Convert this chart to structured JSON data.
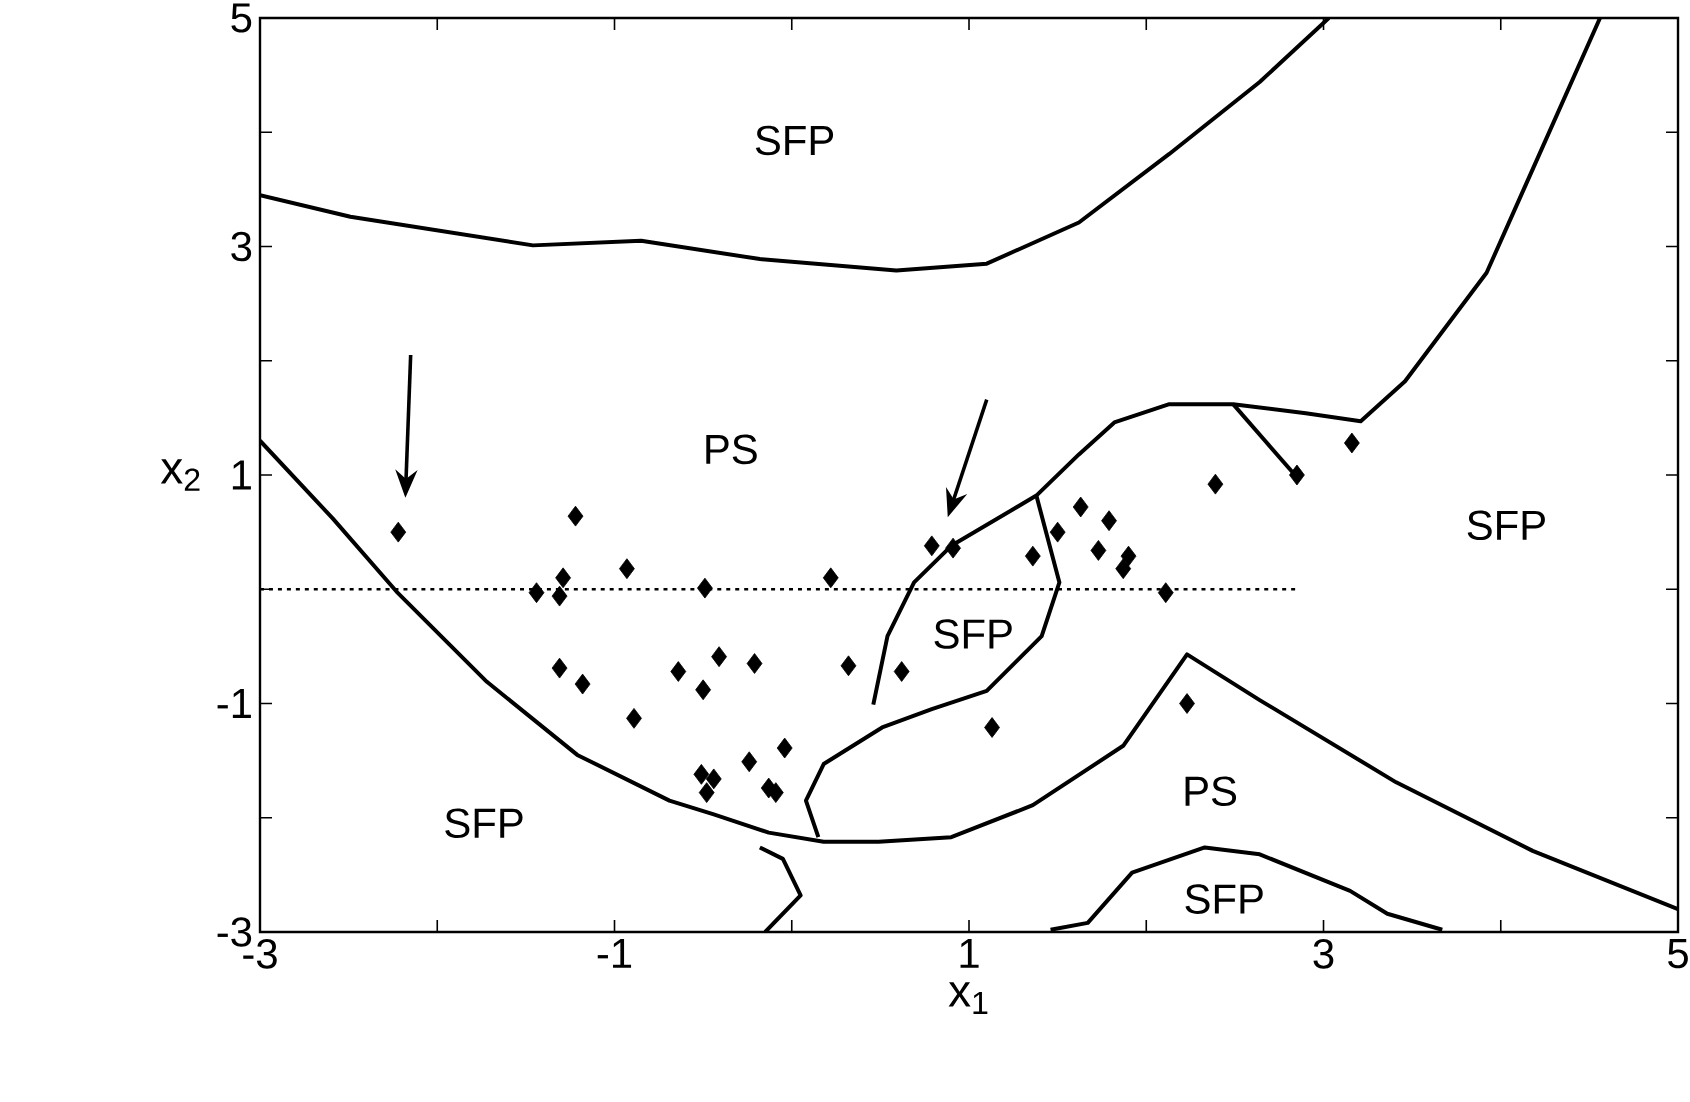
{
  "chart_data": {
    "type": "line",
    "xlabel": "x$_{1}$",
    "ylabel": "x$_{2}$",
    "xlim": [
      -3,
      5
    ],
    "ylim": [
      -3,
      5
    ],
    "xticks": [
      -3,
      {
        "value": -2,
        "label": null
      },
      -1,
      {
        "value": 0,
        "label": null
      },
      1,
      {
        "value": 2,
        "label": null
      },
      3,
      {
        "value": 4,
        "label": null
      },
      5
    ],
    "yticks": [
      -3,
      {
        "value": -2,
        "label": null
      },
      -1,
      {
        "value": 0,
        "label": null
      },
      1,
      {
        "value": 2,
        "label": null
      },
      3,
      {
        "value": 4,
        "label": null
      },
      5
    ],
    "annotations": [
      "SFP",
      "PS",
      "SFP",
      "SFP",
      "SFP",
      "PS",
      "SFP"
    ],
    "series": [
      {
        "type": "line",
        "color": "#000000",
        "x": [
          -3,
          -2.49,
          -1.46,
          -0.85,
          -0.18,
          0.59,
          1.1,
          1.62,
          2.13,
          2.64,
          3.03
        ],
        "values": [
          3.45,
          3.26,
          3.01,
          3.05,
          2.89,
          2.79,
          2.85,
          3.21,
          3.81,
          4.44,
          5.0
        ]
      },
      {
        "type": "line",
        "color": "#000000",
        "x": [
          -3,
          -2.59,
          -2.23,
          -1.72,
          -1.21,
          -0.69,
          -0.44,
          -0.13,
          0.18,
          0.49,
          0.9,
          1.36,
          1.87,
          2.23,
          2.64,
          3.41,
          4.18,
          5
        ],
        "values": [
          1.3,
          0.62,
          -0.02,
          -0.81,
          -1.45,
          -1.85,
          -1.97,
          -2.13,
          -2.21,
          -2.21,
          -2.17,
          -1.89,
          -1.37,
          -0.57,
          -0.97,
          -1.69,
          -2.29,
          -2.8
        ]
      },
      {
        "color": "#000000",
        "x": [
          0.46,
          0.54,
          0.69,
          0.9,
          1.38,
          1.62,
          1.82,
          2.13,
          2.49,
          2.9,
          3.21,
          3.46,
          3.92,
          4.56
        ],
        "values": [
          -1.01,
          -0.41,
          0.06,
          0.38,
          0.82,
          1.18,
          1.46,
          1.62,
          1.62,
          1.54,
          1.47,
          1.82,
          2.77,
          5.0
        ]
      },
      {
        "color": "#000000",
        "x": [
          1.38,
          1.51,
          1.41,
          1.1,
          0.79,
          0.51,
          0.18,
          0.08,
          0.15
        ],
        "values": [
          0.82,
          0.06,
          -0.41,
          -0.89,
          -1.05,
          -1.21,
          -1.53,
          -1.85,
          -2.17
        ]
      },
      {
        "type": "line",
        "color": "#000000",
        "x": [
          2.49,
          2.85
        ],
        "values": [
          1.62,
          0.98
        ]
      },
      {
        "type": "line",
        "color": "#000000",
        "x": [
          -0.18,
          -0.05,
          0.05,
          -0.15
        ],
        "values": [
          -2.26,
          -2.36,
          -2.68,
          -3.0
        ]
      },
      {
        "type": "line",
        "color": "#000000",
        "x": [
          1.46,
          1.67,
          1.92,
          2.33,
          2.64,
          3.15,
          3.36,
          3.67
        ],
        "values": [
          -2.98,
          -2.92,
          -2.48,
          -2.26,
          -2.32,
          -2.64,
          -2.84,
          -2.98
        ]
      },
      {
        "type": "line",
        "color": "#000000",
        "line_style": "dotted",
        "x": [
          -3,
          2.85
        ],
        "values": [
          0,
          0
        ]
      },
      {
        "type": "scatter",
        "color": "#000000",
        "marker": "diamond",
        "x": [
          -2.22,
          -1.22,
          -0.93,
          -1.29,
          -1.44,
          -1.31,
          -0.49,
          0.22,
          0.79,
          0.91,
          -1.31,
          -1.18,
          -0.64,
          -0.41,
          -0.21,
          -0.5,
          0.32,
          0.62,
          -0.89,
          -0.51,
          -0.44,
          -0.48,
          -0.24,
          -0.04,
          -0.13,
          -0.09,
          1.13,
          1.36,
          1.5,
          1.63,
          1.79,
          1.73,
          1.9,
          1.87,
          2.11,
          2.39,
          2.85,
          3.16,
          2.23
        ],
        "values": [
          0.5,
          0.64,
          0.18,
          0.1,
          -0.03,
          -0.06,
          0.01,
          0.1,
          0.38,
          0.36,
          -0.69,
          -0.83,
          -0.72,
          -0.59,
          -0.65,
          -0.88,
          -0.67,
          -0.72,
          -1.13,
          -1.62,
          -1.66,
          -1.78,
          -1.51,
          -1.39,
          -1.74,
          -1.78,
          -1.21,
          0.29,
          0.5,
          0.72,
          0.6,
          0.34,
          0.29,
          0.18,
          -0.03,
          0.92,
          1.0,
          1.28,
          -1.0
        ]
      }
    ]
  }
}
